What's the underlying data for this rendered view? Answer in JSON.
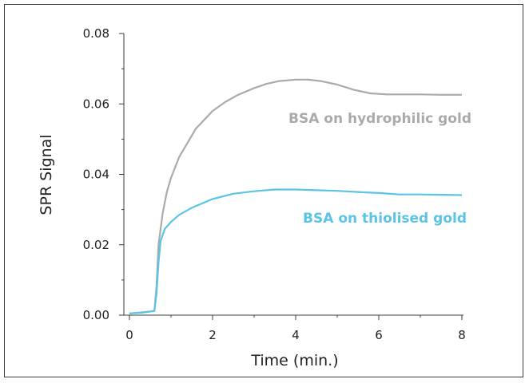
{
  "chart_data": {
    "type": "line",
    "xlabel": "Time (min.)",
    "ylabel": "SPR Signal",
    "xlim": [
      0,
      8
    ],
    "ylim": [
      0,
      0.08
    ],
    "xticks": [
      "0",
      "2",
      "4",
      "6",
      "8"
    ],
    "yticks": [
      "0.00",
      "0.02",
      "0.04",
      "0.06",
      "0.08"
    ],
    "grid": false,
    "series": [
      {
        "name": "BSA on hydrophilic gold",
        "color": "#aaaaaa",
        "x": [
          0,
          0.3,
          0.6,
          0.65,
          0.7,
          0.8,
          0.9,
          1.0,
          1.2,
          1.4,
          1.6,
          1.8,
          2.0,
          2.3,
          2.6,
          3.0,
          3.3,
          3.6,
          4.0,
          4.3,
          4.6,
          5.0,
          5.4,
          5.8,
          6.2,
          6.6,
          7.0,
          7.5,
          8.0
        ],
        "y": [
          0.0005,
          0.0008,
          0.0012,
          0.008,
          0.02,
          0.029,
          0.035,
          0.039,
          0.045,
          0.049,
          0.053,
          0.0555,
          0.058,
          0.0605,
          0.0625,
          0.0645,
          0.0657,
          0.0665,
          0.0669,
          0.0669,
          0.0665,
          0.0655,
          0.064,
          0.063,
          0.0627,
          0.0627,
          0.0627,
          0.0626,
          0.0626
        ]
      },
      {
        "name": "BSA on thiolised gold",
        "color": "#5bc4e6",
        "x": [
          0,
          0.3,
          0.6,
          0.65,
          0.7,
          0.75,
          0.85,
          1.0,
          1.2,
          1.5,
          1.8,
          2.0,
          2.5,
          3.0,
          3.5,
          4.0,
          4.5,
          5.0,
          5.5,
          6.0,
          6.5,
          7.0,
          7.5,
          8.0
        ],
        "y": [
          0.0005,
          0.0007,
          0.0012,
          0.006,
          0.015,
          0.021,
          0.0245,
          0.0265,
          0.0285,
          0.0305,
          0.032,
          0.033,
          0.0345,
          0.0352,
          0.0357,
          0.0357,
          0.0355,
          0.0353,
          0.035,
          0.0347,
          0.0343,
          0.0343,
          0.0342,
          0.0341
        ]
      }
    ]
  }
}
